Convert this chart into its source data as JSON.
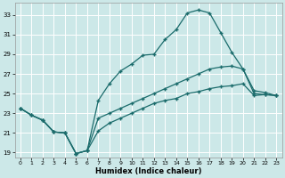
{
  "xlabel": "Humidex (Indice chaleur)",
  "bg_color": "#cce8e8",
  "grid_color": "#ffffff",
  "line_color": "#1a6b6b",
  "xlim": [
    -0.5,
    23.5
  ],
  "ylim": [
    18.5,
    34.2
  ],
  "yticks": [
    19,
    21,
    23,
    25,
    27,
    29,
    31,
    33
  ],
  "xticks": [
    0,
    1,
    2,
    3,
    4,
    5,
    6,
    7,
    8,
    9,
    10,
    11,
    12,
    13,
    14,
    15,
    16,
    17,
    18,
    19,
    20,
    21,
    22,
    23
  ],
  "line1_x": [
    0,
    1,
    2,
    3,
    4,
    5,
    6,
    7,
    8,
    9,
    10,
    11,
    12,
    13,
    14,
    15,
    16,
    17,
    18,
    19,
    20,
    21,
    22,
    23
  ],
  "line1_y": [
    23.5,
    22.8,
    22.3,
    21.1,
    21.0,
    18.9,
    19.2,
    24.3,
    26.0,
    27.3,
    28.0,
    28.9,
    29.0,
    30.5,
    31.5,
    33.2,
    33.5,
    33.2,
    31.2,
    29.2,
    27.5,
    25.3,
    25.1,
    24.8
  ],
  "line2_x": [
    0,
    1,
    2,
    3,
    4,
    5,
    6,
    7,
    8,
    9,
    10,
    11,
    12,
    13,
    14,
    15,
    16,
    17,
    18,
    19,
    20,
    21,
    22,
    23
  ],
  "line2_y": [
    23.5,
    22.8,
    22.3,
    21.1,
    21.0,
    18.9,
    19.2,
    22.5,
    23.0,
    23.5,
    24.0,
    24.5,
    25.0,
    25.5,
    26.0,
    26.5,
    27.0,
    27.5,
    27.7,
    27.8,
    27.5,
    25.0,
    24.9,
    24.8
  ],
  "line3_x": [
    0,
    1,
    2,
    3,
    4,
    5,
    6,
    7,
    8,
    9,
    10,
    11,
    12,
    13,
    14,
    15,
    16,
    17,
    18,
    19,
    20,
    21,
    22,
    23
  ],
  "line3_y": [
    23.5,
    22.8,
    22.3,
    21.1,
    21.0,
    18.9,
    19.2,
    21.2,
    22.0,
    22.5,
    23.0,
    23.5,
    24.0,
    24.3,
    24.5,
    25.0,
    25.2,
    25.5,
    25.7,
    25.8,
    26.0,
    24.8,
    24.9,
    24.8
  ]
}
